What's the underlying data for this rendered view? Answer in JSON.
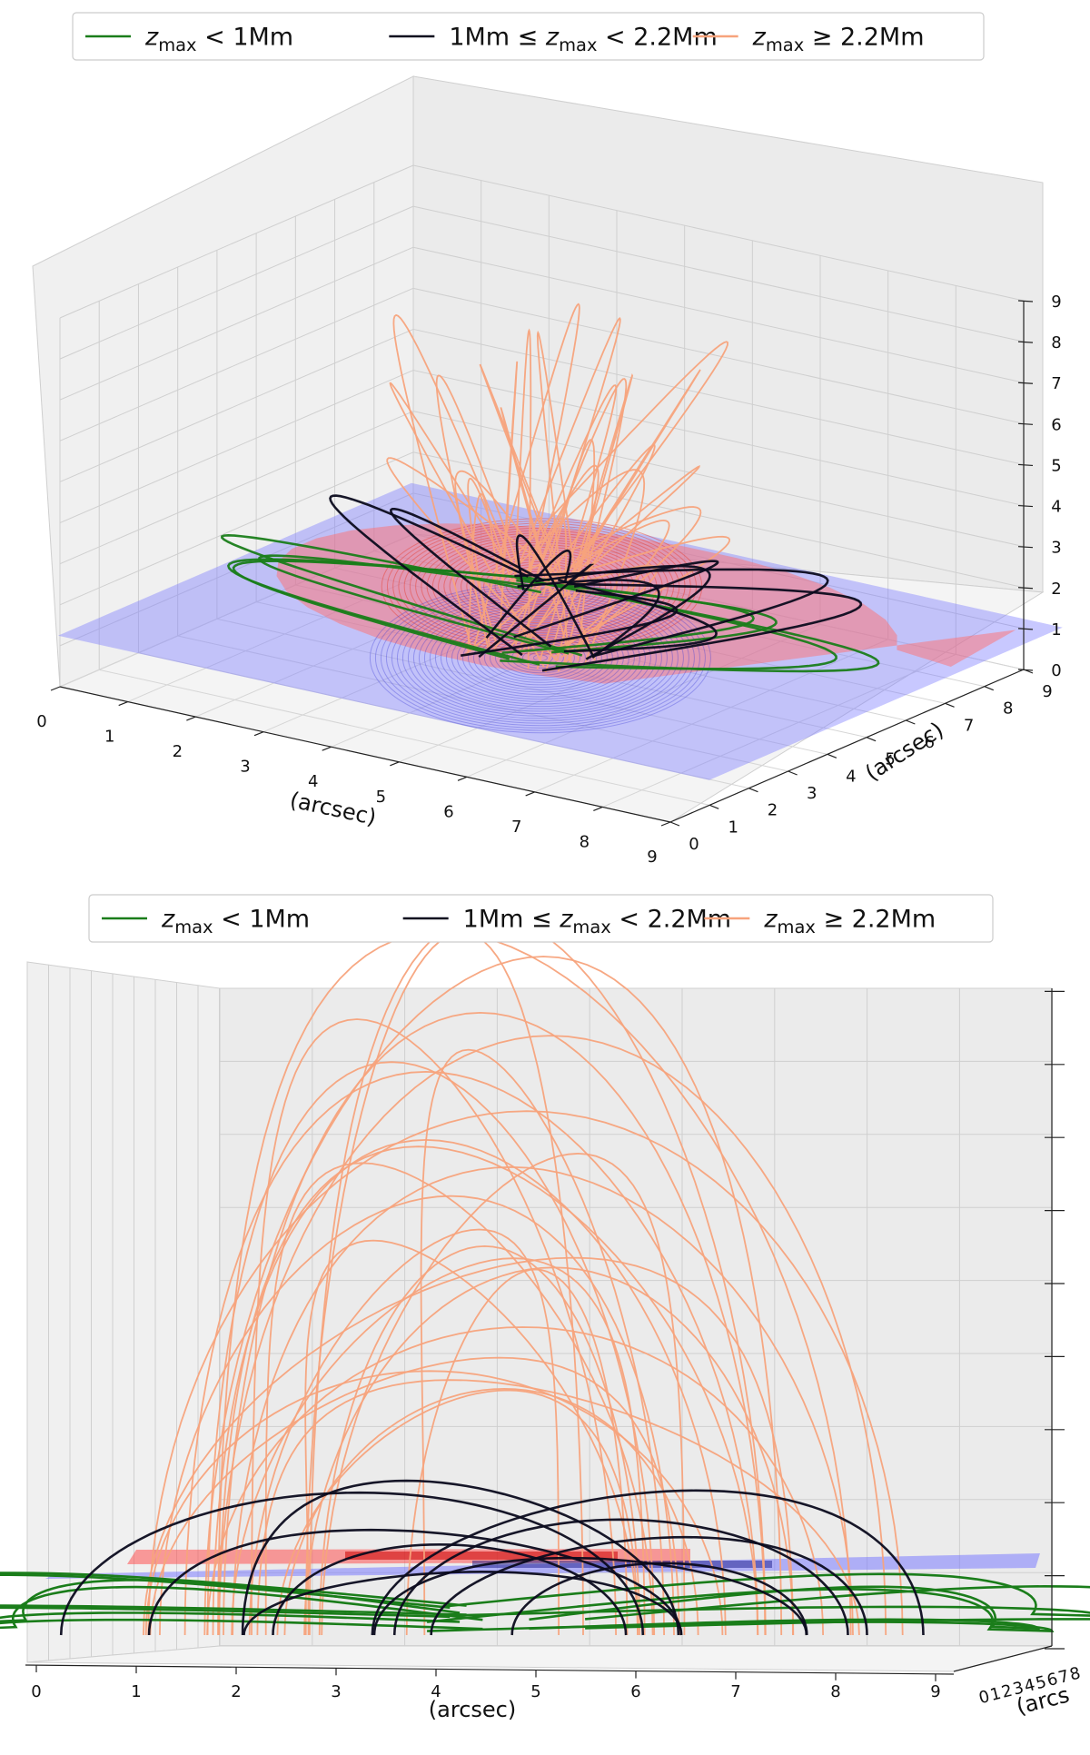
{
  "chart_data": [
    {
      "type": "line3d",
      "view": "oblique",
      "legend": {
        "placement": "top-center",
        "entries": [
          {
            "prefix": "",
            "suffix": "< 1Mm",
            "color": "#1a7d1a"
          },
          {
            "prefix": "1Mm ≤",
            "suffix": "< 2.2Mm",
            "color": "#0b0b1e"
          },
          {
            "prefix": "",
            "suffix": "≥ 2.2Mm",
            "color": "#f7a37c"
          }
        ],
        "var_main": "z",
        "var_sub": "max"
      },
      "xlabel": "(arcsec)",
      "ylabel": "(arcsec)",
      "zlabel": "",
      "xlim": [
        0,
        9
      ],
      "ylim": [
        0,
        9
      ],
      "zlim": [
        0,
        9
      ],
      "xticks": [
        "0",
        "1",
        "2",
        "3",
        "4",
        "5",
        "6",
        "7",
        "8",
        "9"
      ],
      "yticks": [
        "0",
        "1",
        "2",
        "3",
        "4",
        "5",
        "6",
        "7",
        "8",
        "9"
      ],
      "zticks": [
        "0",
        "1",
        "2",
        "3",
        "4",
        "5",
        "6",
        "7",
        "8",
        "9"
      ],
      "magnetogram": {
        "positive_color": "#ff6f6f",
        "negative_color": "#7b7bff"
      },
      "series": [
        {
          "name": "zmax < 1Mm",
          "color": "#1a7d1a",
          "height_range": [
            0,
            1
          ],
          "count": 8
        },
        {
          "name": "1Mm <= zmax < 2.2Mm",
          "color": "#0b0b1e",
          "height_range": [
            1,
            2.2
          ],
          "count": 12
        },
        {
          "name": "zmax >= 2.2Mm",
          "color": "#f7a37c",
          "height_range": [
            2.2,
            7.3
          ],
          "count": 30
        }
      ]
    },
    {
      "type": "line3d",
      "view": "side",
      "legend": {
        "placement": "top-center",
        "entries": [
          {
            "prefix": "",
            "suffix": "< 1Mm",
            "color": "#1a7d1a"
          },
          {
            "prefix": "1Mm ≤",
            "suffix": "< 2.2Mm",
            "color": "#0b0b1e"
          },
          {
            "prefix": "",
            "suffix": "≥ 2.2Mm",
            "color": "#f7a37c"
          }
        ],
        "var_main": "z",
        "var_sub": "max"
      },
      "xlabel": "(arcsec)",
      "ylabel": "(arcs",
      "xlim": [
        0,
        9
      ],
      "ylim": [
        0,
        8
      ],
      "xticks": [
        "0",
        "1",
        "2",
        "3",
        "4",
        "5",
        "6",
        "7",
        "8",
        "9"
      ],
      "yticks": [
        "0",
        "1",
        "2",
        "3",
        "4",
        "5",
        "6",
        "7",
        "8"
      ],
      "magnetogram": {
        "positive_color": "#ff5050",
        "negative_color": "#7b7bff"
      },
      "series": [
        {
          "name": "zmax < 1Mm",
          "color": "#1a7d1a",
          "count": 8
        },
        {
          "name": "1Mm <= zmax < 2.2Mm",
          "color": "#0b0b1e",
          "count": 10
        },
        {
          "name": "zmax >= 2.2Mm",
          "color": "#f7a37c",
          "count": 30
        }
      ]
    }
  ]
}
